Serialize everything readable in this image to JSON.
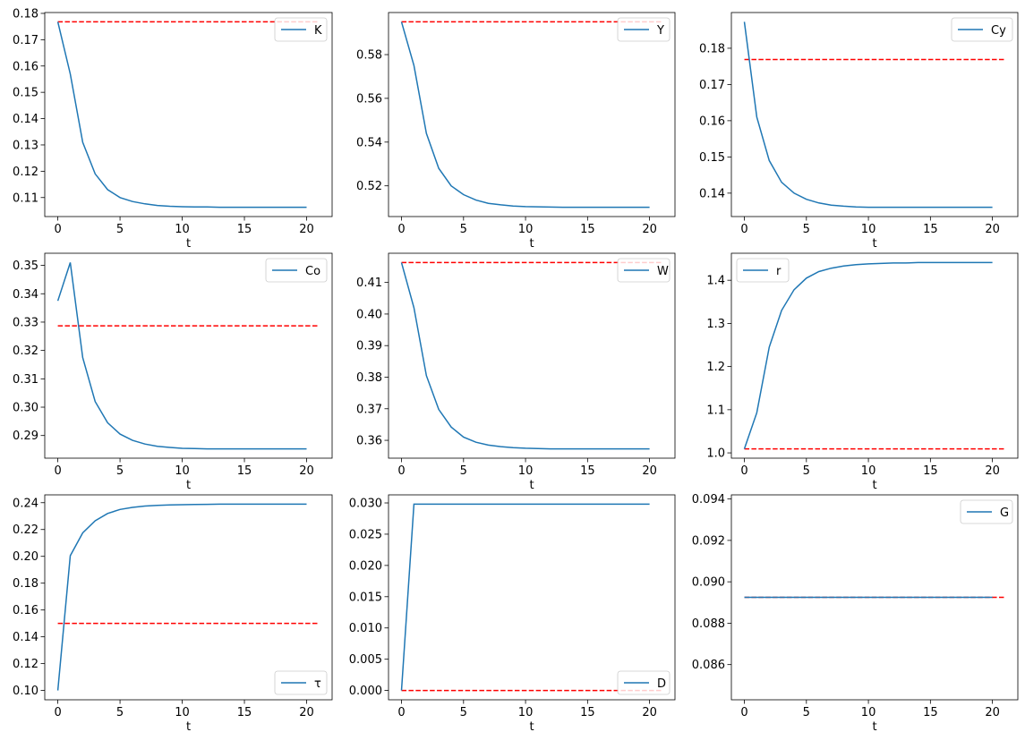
{
  "chart_data": [
    {
      "type": "line",
      "name": "K",
      "legend_loc": "upper right",
      "xlabel": "t",
      "xticks": [
        "0",
        "5",
        "10",
        "15",
        "20"
      ],
      "yticks": [
        "0.11",
        "0.12",
        "0.13",
        "0.14",
        "0.15",
        "0.16",
        "0.17",
        "0.18"
      ],
      "values": [
        0.1768,
        0.157,
        0.131,
        0.119,
        0.113,
        0.11,
        0.1085,
        0.1076,
        0.107,
        0.1067,
        0.1065,
        0.1064,
        0.1064,
        0.1063,
        0.1063,
        0.1063,
        0.1063,
        0.1063,
        0.1063,
        0.1063,
        0.1063
      ],
      "steady_state": 0.1768
    },
    {
      "type": "line",
      "name": "Y",
      "legend_loc": "upper right",
      "xlabel": "t",
      "xticks": [
        "0",
        "5",
        "10",
        "15",
        "20"
      ],
      "yticks": [
        "0.52",
        "0.54",
        "0.56",
        "0.58"
      ],
      "values": [
        0.595,
        0.575,
        0.544,
        0.528,
        0.52,
        0.516,
        0.5135,
        0.512,
        0.5113,
        0.5108,
        0.5105,
        0.5104,
        0.5103,
        0.5102,
        0.5102,
        0.5102,
        0.5102,
        0.5102,
        0.5102,
        0.5102,
        0.5102
      ],
      "steady_state": 0.595
    },
    {
      "type": "line",
      "name": "Cy",
      "legend_loc": "upper right",
      "xlabel": "t",
      "xticks": [
        "0",
        "5",
        "10",
        "15",
        "20"
      ],
      "yticks": [
        "0.14",
        "0.15",
        "0.16",
        "0.17",
        "0.18"
      ],
      "values": [
        0.1873,
        0.161,
        0.149,
        0.143,
        0.14,
        0.1383,
        0.1373,
        0.1367,
        0.1364,
        0.1362,
        0.1361,
        0.1361,
        0.1361,
        0.1361,
        0.1361,
        0.1361,
        0.1361,
        0.1361,
        0.1361,
        0.1361,
        0.1361
      ],
      "steady_state": 0.1769
    },
    {
      "type": "line",
      "name": "Co",
      "legend_loc": "upper right",
      "xlabel": "t",
      "xticks": [
        "0",
        "5",
        "10",
        "15",
        "20"
      ],
      "yticks": [
        "0.29",
        "0.30",
        "0.31",
        "0.32",
        "0.33",
        "0.34",
        "0.35"
      ],
      "values": [
        0.3375,
        0.351,
        0.3175,
        0.302,
        0.2945,
        0.2905,
        0.2883,
        0.287,
        0.2862,
        0.2858,
        0.2855,
        0.2854,
        0.2853,
        0.2853,
        0.2853,
        0.2853,
        0.2853,
        0.2853,
        0.2853,
        0.2853,
        0.2853
      ],
      "steady_state": 0.3287
    },
    {
      "type": "line",
      "name": "W",
      "legend_loc": "upper right",
      "xlabel": "t",
      "xticks": [
        "0",
        "5",
        "10",
        "15",
        "20"
      ],
      "yticks": [
        "0.36",
        "0.37",
        "0.38",
        "0.39",
        "0.40",
        "0.41"
      ],
      "values": [
        0.4163,
        0.402,
        0.3805,
        0.3698,
        0.3642,
        0.361,
        0.3594,
        0.3585,
        0.358,
        0.3577,
        0.3575,
        0.3574,
        0.3573,
        0.3573,
        0.3573,
        0.3573,
        0.3573,
        0.3573,
        0.3573,
        0.3573,
        0.3573
      ],
      "steady_state": 0.4163
    },
    {
      "type": "line",
      "name": "r",
      "legend_loc": "upper left",
      "xlabel": "t",
      "xticks": [
        "0",
        "5",
        "10",
        "15",
        "20"
      ],
      "yticks": [
        "1.0",
        "1.1",
        "1.2",
        "1.3",
        "1.4"
      ],
      "values": [
        1.0093,
        1.093,
        1.245,
        1.33,
        1.378,
        1.405,
        1.42,
        1.428,
        1.433,
        1.436,
        1.438,
        1.439,
        1.44,
        1.44,
        1.441,
        1.441,
        1.441,
        1.441,
        1.441,
        1.441,
        1.441
      ],
      "steady_state": 1.0093
    },
    {
      "type": "line",
      "name": "τ",
      "legend_loc": "lower right",
      "xlabel": "t",
      "xticks": [
        "0",
        "5",
        "10",
        "15",
        "20"
      ],
      "yticks": [
        "0.10",
        "0.12",
        "0.14",
        "0.16",
        "0.18",
        "0.20",
        "0.22",
        "0.24"
      ],
      "values": [
        0.1,
        0.2005,
        0.2175,
        0.2265,
        0.232,
        0.235,
        0.2365,
        0.2375,
        0.238,
        0.2383,
        0.2385,
        0.2387,
        0.2388,
        0.2389,
        0.2389,
        0.2389,
        0.2389,
        0.2389,
        0.2389,
        0.2389,
        0.2389
      ],
      "steady_state": 0.15
    },
    {
      "type": "line",
      "name": "D",
      "legend_loc": "lower right",
      "xlabel": "t",
      "xticks": [
        "0",
        "5",
        "10",
        "15",
        "20"
      ],
      "yticks": [
        "0.000",
        "0.005",
        "0.010",
        "0.015",
        "0.020",
        "0.025",
        "0.030"
      ],
      "values": [
        0,
        0.0298,
        0.0298,
        0.0298,
        0.0298,
        0.0298,
        0.0298,
        0.0298,
        0.0298,
        0.0298,
        0.0298,
        0.0298,
        0.0298,
        0.0298,
        0.0298,
        0.0298,
        0.0298,
        0.0298,
        0.0298,
        0.0298,
        0.0298
      ],
      "steady_state": 0
    },
    {
      "type": "line",
      "name": "G",
      "legend_loc": "upper right",
      "xlabel": "t",
      "xticks": [
        "0",
        "5",
        "10",
        "15",
        "20"
      ],
      "yticks": [
        "0.086",
        "0.088",
        "0.090",
        "0.092",
        "0.094"
      ],
      "ylim": [
        0.0843,
        0.0942
      ],
      "values": [
        0.08925,
        0.08925,
        0.08925,
        0.08925,
        0.08925,
        0.08925,
        0.08925,
        0.08925,
        0.08925,
        0.08925,
        0.08925,
        0.08925,
        0.08925,
        0.08925,
        0.08925,
        0.08925,
        0.08925,
        0.08925,
        0.08925,
        0.08925,
        0.08925
      ],
      "steady_state": 0.08925
    }
  ],
  "colors": {
    "series": "#1f77b4",
    "steady_state": "#ff0000"
  }
}
